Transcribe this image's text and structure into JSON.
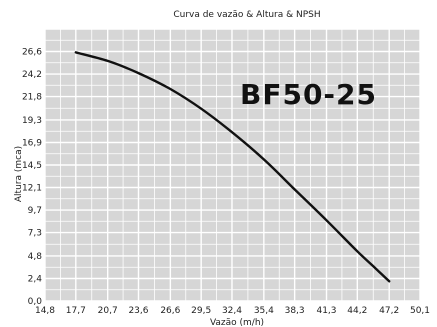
{
  "chart_data": {
    "type": "line",
    "title": "Curva de vazão & Altura & NPSH",
    "xlabel": "Vazão (m/h)",
    "ylabel": "Altura (mca)",
    "model_label": "BF50-25",
    "xlim": [
      14.8,
      50.1
    ],
    "ylim": [
      0.0,
      29.0
    ],
    "x_ticks": [
      "14,8",
      "17,7",
      "20,7",
      "23,6",
      "26,6",
      "29,5",
      "32,4",
      "35,4",
      "38,3",
      "41,3",
      "44,2",
      "47,2",
      "50,1"
    ],
    "x_tick_values": [
      14.8,
      17.7,
      20.7,
      23.6,
      26.6,
      29.5,
      32.4,
      35.4,
      38.3,
      41.3,
      44.2,
      47.2,
      50.1
    ],
    "y_ticks": [
      "0,0",
      "2,4",
      "4,8",
      "7,3",
      "9,7",
      "12,1",
      "14,5",
      "16,9",
      "19,3",
      "21,8",
      "24,2",
      "26,6"
    ],
    "y_tick_values": [
      0.0,
      2.4,
      4.8,
      7.3,
      9.7,
      12.1,
      14.5,
      16.9,
      19.3,
      21.8,
      24.2,
      26.6
    ],
    "grid": true,
    "series": [
      {
        "color": "#111111",
        "x": [
          17.7,
          20.7,
          23.6,
          26.6,
          29.5,
          32.4,
          35.4,
          38.3,
          41.3,
          44.2,
          45.7,
          47.2
        ],
        "y": [
          26.5,
          25.6,
          24.3,
          22.6,
          20.5,
          18.0,
          15.1,
          11.9,
          8.6,
          5.3,
          3.7,
          2.1
        ]
      }
    ]
  }
}
